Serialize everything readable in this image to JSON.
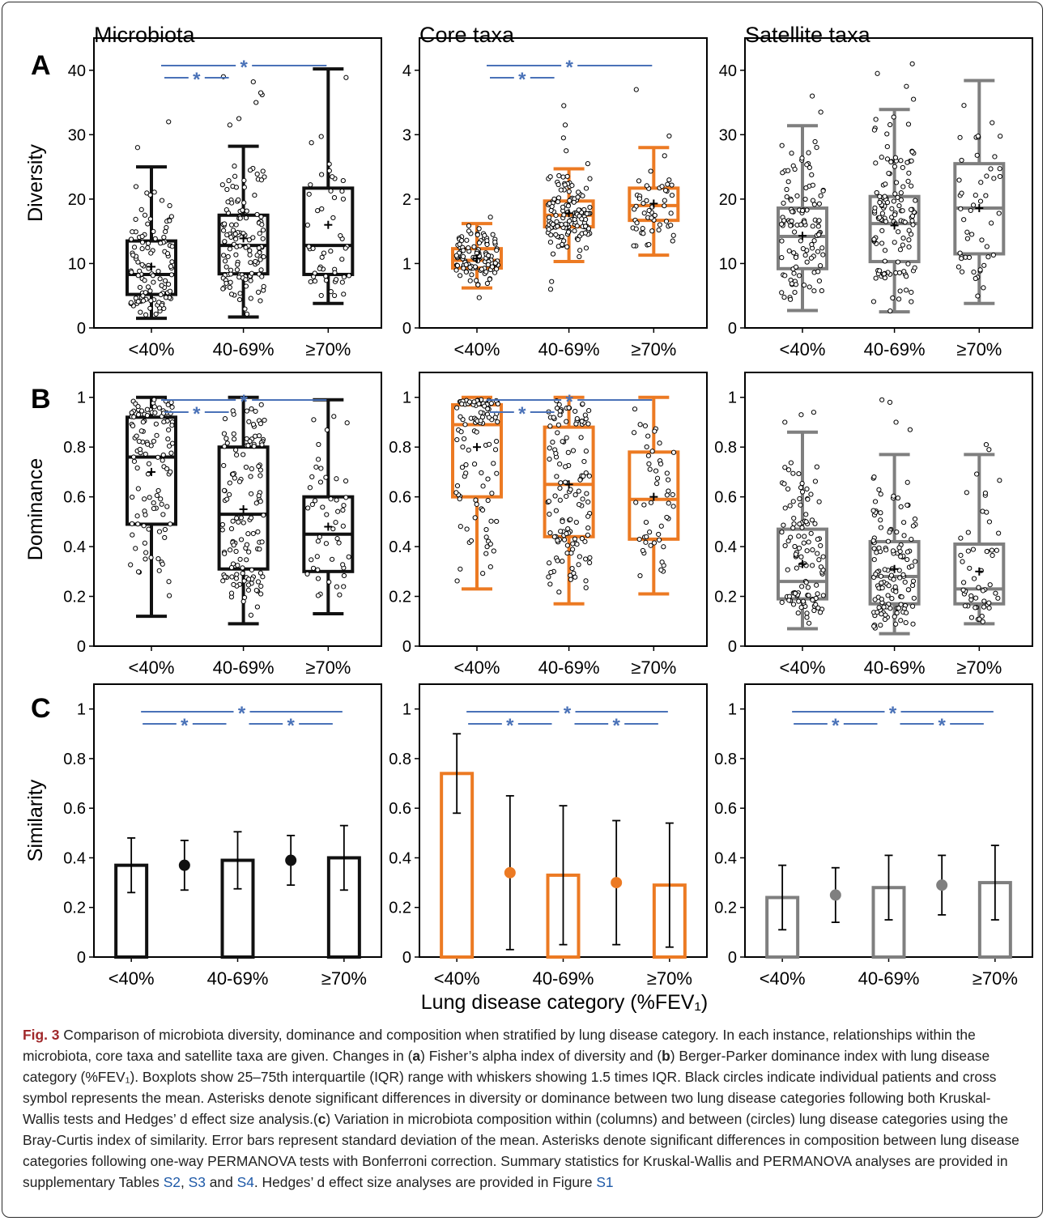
{
  "figure": {
    "column_titles": [
      "Microbiota",
      "Core taxa",
      "Satellite taxa"
    ],
    "row_letters": [
      "A",
      "B",
      "C"
    ],
    "ylabels": [
      "Diversity",
      "Dominance",
      "Similarity"
    ],
    "xlabel": "Lung disease category (%FEV₁)",
    "categories": [
      "<40%",
      "40-69%",
      "≥70%"
    ],
    "significance_mark": "*",
    "colors": {
      "Microbiota": "#111111",
      "Core taxa": "#ec7a23",
      "Satellite taxa": "#7f7f7f",
      "significance": "#4a72b8"
    }
  },
  "caption": {
    "label": "Fig. 3",
    "p1": "Comparison of microbiota diversity, dominance and composition when stratified by lung disease category. In each instance, relationships within the microbiota, core taxa and satellite taxa are given. Changes in (",
    "a": "a",
    "p2": ") Fisher’s alpha index of diversity and (",
    "b": "b",
    "p3": ") Berger-Parker dominance index with lung disease category (%FEV₁). Boxplots show 25–75th interquartile (IQR) range with whiskers showing 1.5 times IQR. Black circles indicate individual patients and cross symbol represents the mean. Asterisks denote significant differences in diversity or dominance between two lung disease categories following both Kruskal-Wallis tests and Hedges’ d effect size analysis.(",
    "c": "c",
    "p4": ") Variation in microbiota composition within (columns) and between (circles) lung disease categories using the Bray-Curtis index of similarity. Error bars represent standard deviation of the mean. Asterisks denote significant differences in composition between lung disease categories following one-way PERMANOVA tests with Bonferroni correction. Summary statistics for Kruskal-Wallis and PERMANOVA analyses are provided in supplementary Tables ",
    "s2": "S2",
    "sep1": ", ",
    "s3": "S3",
    "sep2": " and ",
    "s4": "S4",
    "p5": ". Hedges’ d effect size analyses are provided in Figure ",
    "s1": "S1"
  },
  "chart_data": [
    {
      "panel": "A",
      "group": "Microbiota",
      "type": "boxplot",
      "ylabel": "Diversity",
      "ylim": [
        0,
        45
      ],
      "yticks": [
        0,
        10,
        20,
        30,
        40
      ],
      "boxes": [
        {
          "category": "<40%",
          "whisker_low": 1.5,
          "q1": 5.2,
          "median": 8.3,
          "q3": 13.5,
          "whisker_high": 25,
          "mean": 9.5,
          "n": 110,
          "outliers": [
            28,
            32
          ]
        },
        {
          "category": "40-69%",
          "whisker_low": 1.7,
          "q1": 8.4,
          "median": 12.8,
          "q3": 17.5,
          "whisker_high": 28.2,
          "mean": 13.9,
          "n": 130,
          "outliers": [
            31.5,
            32.5,
            35,
            36.2,
            36.5,
            38.2,
            39
          ]
        },
        {
          "category": "≥70%",
          "whisker_low": 3.8,
          "q1": 8.3,
          "median": 12.8,
          "q3": 21.7,
          "whisker_high": 40.2,
          "mean": 16,
          "n": 50,
          "outliers": []
        }
      ],
      "significance": [
        {
          "from": "<40%",
          "to": "40-69%"
        },
        {
          "from": "<40%",
          "to": "≥70%"
        }
      ]
    },
    {
      "panel": "A",
      "group": "Core taxa",
      "type": "boxplot",
      "ylabel": "Diversity",
      "ylim": [
        0,
        4.5
      ],
      "yticks": [
        0,
        1,
        2,
        3,
        4
      ],
      "boxes": [
        {
          "category": "<40%",
          "whisker_low": 0.62,
          "q1": 0.93,
          "median": 1.05,
          "q3": 1.23,
          "whisker_high": 1.62,
          "mean": 1.08,
          "n": 110,
          "outliers": [
            0.47,
            1.72
          ]
        },
        {
          "category": "40-69%",
          "whisker_low": 1.03,
          "q1": 1.57,
          "median": 1.75,
          "q3": 1.97,
          "whisker_high": 2.47,
          "mean": 1.78,
          "n": 130,
          "outliers": [
            0.6,
            0.72,
            2.55,
            2.75,
            2.95,
            3.15,
            3.45
          ]
        },
        {
          "category": "≥70%",
          "whisker_low": 1.13,
          "q1": 1.67,
          "median": 1.9,
          "q3": 2.17,
          "whisker_high": 2.8,
          "mean": 1.93,
          "n": 50,
          "outliers": [
            2.98,
            3.7
          ]
        }
      ],
      "significance": [
        {
          "from": "<40%",
          "to": "40-69%"
        },
        {
          "from": "<40%",
          "to": "≥70%"
        }
      ]
    },
    {
      "panel": "A",
      "group": "Satellite taxa",
      "type": "boxplot",
      "ylabel": "Diversity",
      "ylim": [
        0,
        45
      ],
      "yticks": [
        0,
        10,
        20,
        30,
        40
      ],
      "boxes": [
        {
          "category": "<40%",
          "whisker_low": 2.7,
          "q1": 9.2,
          "median": 14.2,
          "q3": 18.6,
          "whisker_high": 31.4,
          "mean": 14.3,
          "n": 110,
          "outliers": [
            33.5,
            36
          ]
        },
        {
          "category": "40-69%",
          "whisker_low": 2.5,
          "q1": 10.3,
          "median": 16.2,
          "q3": 20.4,
          "whisker_high": 33.9,
          "mean": 15.9,
          "n": 130,
          "outliers": [
            35.5,
            37.5,
            39.5,
            41
          ]
        },
        {
          "category": "≥70%",
          "whisker_low": 3.8,
          "q1": 11.5,
          "median": 18.6,
          "q3": 25.5,
          "whisker_high": 38.4,
          "mean": 18.6,
          "n": 50,
          "outliers": []
        }
      ],
      "significance": []
    },
    {
      "panel": "B",
      "group": "Microbiota",
      "type": "boxplot",
      "ylabel": "Dominance",
      "ylim": [
        0,
        1.1
      ],
      "yticks": [
        0,
        0.2,
        0.4,
        0.6,
        0.8,
        1
      ],
      "boxes": [
        {
          "category": "<40%",
          "whisker_low": 0.12,
          "q1": 0.49,
          "median": 0.76,
          "q3": 0.92,
          "whisker_high": 1.0,
          "mean": 0.7,
          "n": 110,
          "outliers": []
        },
        {
          "category": "40-69%",
          "whisker_low": 0.09,
          "q1": 0.31,
          "median": 0.53,
          "q3": 0.8,
          "whisker_high": 1.0,
          "mean": 0.55,
          "n": 130,
          "outliers": []
        },
        {
          "category": "≥70%",
          "whisker_low": 0.13,
          "q1": 0.3,
          "median": 0.45,
          "q3": 0.6,
          "whisker_high": 0.99,
          "mean": 0.48,
          "n": 50,
          "outliers": []
        }
      ],
      "significance": [
        {
          "from": "<40%",
          "to": "40-69%"
        },
        {
          "from": "<40%",
          "to": "≥70%"
        }
      ]
    },
    {
      "panel": "B",
      "group": "Core taxa",
      "type": "boxplot",
      "ylabel": "Dominance",
      "ylim": [
        0,
        1.1
      ],
      "yticks": [
        0,
        0.2,
        0.4,
        0.6,
        0.8,
        1
      ],
      "boxes": [
        {
          "category": "<40%",
          "whisker_low": 0.23,
          "q1": 0.6,
          "median": 0.89,
          "q3": 0.97,
          "whisker_high": 1.0,
          "mean": 0.8,
          "n": 110,
          "outliers": []
        },
        {
          "category": "40-69%",
          "whisker_low": 0.17,
          "q1": 0.44,
          "median": 0.65,
          "q3": 0.88,
          "whisker_high": 1.0,
          "mean": 0.65,
          "n": 130,
          "outliers": []
        },
        {
          "category": "≥70%",
          "whisker_low": 0.21,
          "q1": 0.43,
          "median": 0.59,
          "q3": 0.78,
          "whisker_high": 1.0,
          "mean": 0.6,
          "n": 50,
          "outliers": []
        }
      ],
      "significance": [
        {
          "from": "<40%",
          "to": "40-69%"
        },
        {
          "from": "<40%",
          "to": "≥70%"
        }
      ]
    },
    {
      "panel": "B",
      "group": "Satellite taxa",
      "type": "boxplot",
      "ylabel": "Dominance",
      "ylim": [
        0,
        1.1
      ],
      "yticks": [
        0,
        0.2,
        0.4,
        0.6,
        0.8,
        1
      ],
      "boxes": [
        {
          "category": "<40%",
          "whisker_low": 0.07,
          "q1": 0.19,
          "median": 0.26,
          "q3": 0.47,
          "whisker_high": 0.86,
          "mean": 0.33,
          "n": 110,
          "outliers": [
            0.9,
            0.93,
            0.94
          ]
        },
        {
          "category": "40-69%",
          "whisker_low": 0.05,
          "q1": 0.17,
          "median": 0.28,
          "q3": 0.42,
          "whisker_high": 0.77,
          "mean": 0.31,
          "n": 130,
          "outliers": [
            0.87,
            0.9,
            0.98,
            0.99
          ]
        },
        {
          "category": "≥70%",
          "whisker_low": 0.09,
          "q1": 0.17,
          "median": 0.23,
          "q3": 0.41,
          "whisker_high": 0.77,
          "mean": 0.3,
          "n": 50,
          "outliers": [
            0.79,
            0.81
          ]
        }
      ],
      "significance": []
    },
    {
      "panel": "C",
      "group": "Microbiota",
      "type": "bar",
      "ylabel": "Similarity",
      "ylim": [
        0,
        1.1
      ],
      "yticks": [
        0,
        0.2,
        0.4,
        0.6,
        0.8,
        1
      ],
      "within": [
        {
          "category": "<40%",
          "value": 0.37,
          "sd": 0.11
        },
        {
          "category": "40-69%",
          "value": 0.39,
          "sd": 0.115
        },
        {
          "category": "≥70%",
          "value": 0.4,
          "sd": 0.13
        }
      ],
      "between": [
        {
          "pair": "<40% vs 40-69%",
          "value": 0.37,
          "sd": 0.1
        },
        {
          "pair": "40-69% vs ≥70%",
          "value": 0.39,
          "sd": 0.1
        }
      ],
      "significance": [
        {
          "from": "<40%",
          "to": "40-69%"
        },
        {
          "from": "40-69%",
          "to": "≥70%"
        },
        {
          "from": "<40%",
          "to": "≥70%"
        }
      ]
    },
    {
      "panel": "C",
      "group": "Core taxa",
      "type": "bar",
      "ylabel": "Similarity",
      "ylim": [
        0,
        1.1
      ],
      "yticks": [
        0,
        0.2,
        0.4,
        0.6,
        0.8,
        1
      ],
      "within": [
        {
          "category": "<40%",
          "value": 0.74,
          "sd": 0.16
        },
        {
          "category": "40-69%",
          "value": 0.33,
          "sd": 0.28
        },
        {
          "category": "≥70%",
          "value": 0.29,
          "sd": 0.25
        }
      ],
      "between": [
        {
          "pair": "<40% vs 40-69%",
          "value": 0.34,
          "sd": 0.31
        },
        {
          "pair": "40-69% vs ≥70%",
          "value": 0.3,
          "sd": 0.25
        }
      ],
      "significance": [
        {
          "from": "<40%",
          "to": "40-69%"
        },
        {
          "from": "40-69%",
          "to": "≥70%"
        },
        {
          "from": "<40%",
          "to": "≥70%"
        }
      ]
    },
    {
      "panel": "C",
      "group": "Satellite taxa",
      "type": "bar",
      "ylabel": "Similarity",
      "ylim": [
        0,
        1.1
      ],
      "yticks": [
        0,
        0.2,
        0.4,
        0.6,
        0.8,
        1
      ],
      "within": [
        {
          "category": "<40%",
          "value": 0.24,
          "sd": 0.13
        },
        {
          "category": "40-69%",
          "value": 0.28,
          "sd": 0.13
        },
        {
          "category": "≥70%",
          "value": 0.3,
          "sd": 0.15
        }
      ],
      "between": [
        {
          "pair": "<40% vs 40-69%",
          "value": 0.25,
          "sd": 0.11
        },
        {
          "pair": "40-69% vs ≥70%",
          "value": 0.29,
          "sd": 0.12
        }
      ],
      "significance": [
        {
          "from": "<40%",
          "to": "40-69%"
        },
        {
          "from": "40-69%",
          "to": "≥70%"
        },
        {
          "from": "<40%",
          "to": "≥70%"
        }
      ]
    }
  ]
}
